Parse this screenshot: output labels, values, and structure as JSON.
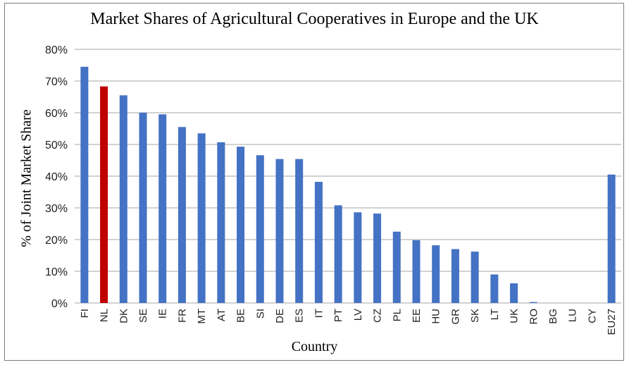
{
  "chart_data": {
    "type": "bar",
    "title": "Market Shares of Agricultural Cooperatives in Europe and the UK",
    "xlabel": "Country",
    "ylabel": "% of Joint Market Share",
    "ylim": [
      0,
      80
    ],
    "yticks": [
      "0%",
      "10%",
      "20%",
      "30%",
      "40%",
      "50%",
      "60%",
      "70%",
      "80%"
    ],
    "grid": true,
    "categories": [
      "FI",
      "NL",
      "DK",
      "SE",
      "IE",
      "FR",
      "MT",
      "AT",
      "BE",
      "SI",
      "DE",
      "ES",
      "IT",
      "PT",
      "LV",
      "CZ",
      "PL",
      "EE",
      "HU",
      "GR",
      "SK",
      "LT",
      "UK",
      "RO",
      "BG",
      "LU",
      "CY",
      "EU27"
    ],
    "values": [
      74.5,
      68.3,
      65.5,
      60.0,
      59.5,
      55.5,
      53.5,
      50.7,
      49.3,
      46.6,
      45.4,
      45.4,
      38.2,
      30.8,
      28.6,
      28.2,
      22.5,
      19.8,
      18.2,
      17.0,
      16.2,
      9.0,
      6.2,
      0.3,
      0,
      0,
      0,
      40.5
    ],
    "highlight": "NL",
    "colors": {
      "bar": "#4472c4",
      "highlight": "#c00000",
      "grid": "#a6a6a6"
    }
  }
}
